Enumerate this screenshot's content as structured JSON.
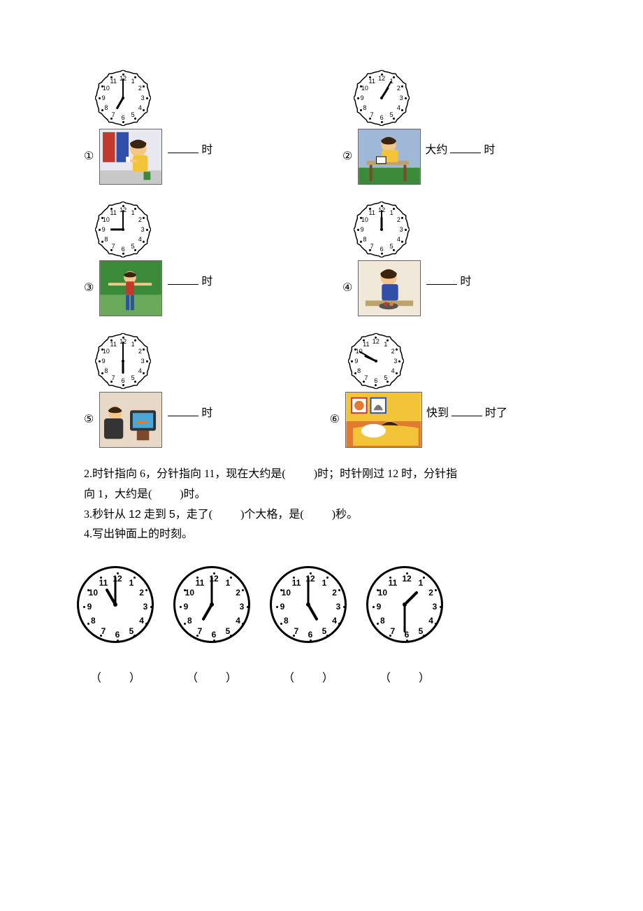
{
  "section1": {
    "items": [
      {
        "num": "①",
        "hour": 7,
        "minute": 0,
        "prefix": "",
        "suffix_unit": "时",
        "suffix_after": ""
      },
      {
        "num": "②",
        "hour": 1,
        "minute": 5,
        "prefix": "大约",
        "suffix_unit": "时",
        "suffix_after": ""
      },
      {
        "num": "③",
        "hour": 9,
        "minute": 0,
        "prefix": "",
        "suffix_unit": "时",
        "suffix_after": ""
      },
      {
        "num": "④",
        "hour": 12,
        "minute": 0,
        "prefix": "",
        "suffix_unit": "时",
        "suffix_after": ""
      },
      {
        "num": "⑤",
        "hour": 6,
        "minute": 0,
        "prefix": "",
        "suffix_unit": "时",
        "suffix_after": ""
      },
      {
        "num": "⑥",
        "hour": 9,
        "minute": 50,
        "prefix": "快到",
        "suffix_unit": "时了",
        "suffix_after": ""
      }
    ]
  },
  "q2": {
    "label": "2.",
    "t1": "时针指向 6，分针指向 11，现在大约是(",
    "t2": ")时；时针刚过 12 时，分针指",
    "t3": "向 1，大约是(",
    "t4": ")时。"
  },
  "q3": {
    "label": "3.",
    "t1": "秒针从",
    "n1": "12",
    "t2": " 走到 ",
    "n2": "5",
    "t3": "，走了(",
    "t4": ")个大格，是(",
    "t5": ")秒。"
  },
  "q4": {
    "label": "4.",
    "title": "写出钟面上的时刻。",
    "clocks": [
      {
        "hour": 11,
        "minute": 0
      },
      {
        "hour": 7,
        "minute": 0
      },
      {
        "hour": 5,
        "minute": 0
      },
      {
        "hour": 1,
        "minute": 30
      }
    ],
    "answer_open": "（",
    "answer_close": "）"
  },
  "colors": {
    "text": "#000000",
    "bg": "#ffffff",
    "scene_skin": "#f4c68a",
    "scene_hair": "#3a2410",
    "scene_yellow": "#f3c437",
    "scene_blue": "#2f4fa8",
    "scene_red": "#c23a2e",
    "scene_green": "#3a8a3a",
    "scene_orange": "#e07b2f",
    "scene_wall_blue": "#9fb8d8",
    "scene_gray": "#c8c8c8",
    "scene_brown": "#7a4a2a"
  }
}
